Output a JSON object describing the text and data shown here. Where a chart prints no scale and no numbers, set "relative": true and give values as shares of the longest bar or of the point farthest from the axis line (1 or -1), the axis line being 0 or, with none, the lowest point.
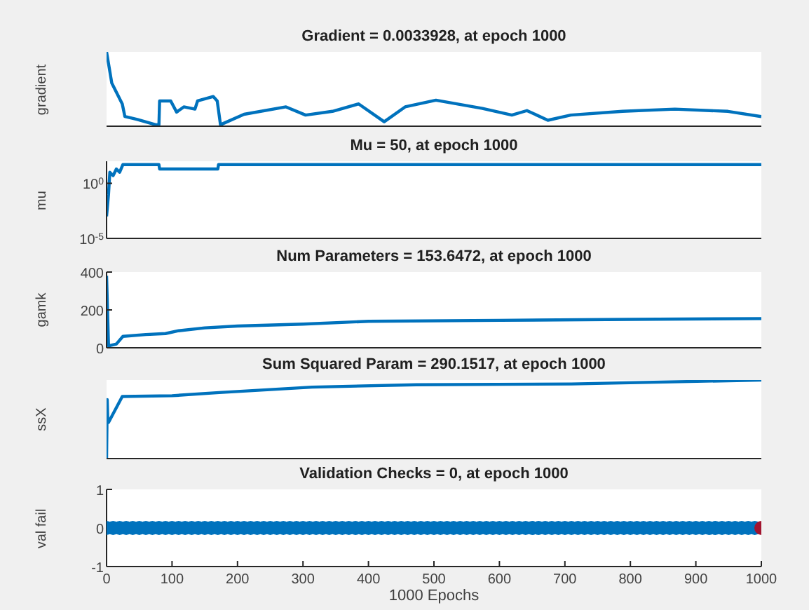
{
  "chart_data": [
    {
      "type": "line",
      "title": "Gradient = 0.0033928, at epoch 1000",
      "ylabel": "gradient",
      "relative": true,
      "tick_labels": false,
      "xlim": [
        0,
        1000
      ],
      "xticks": [
        0,
        100,
        200,
        300,
        400,
        500,
        600,
        700,
        800,
        900,
        1000
      ],
      "x": [
        0,
        8,
        24,
        28,
        47,
        75,
        80,
        81,
        98,
        107,
        118,
        135,
        139,
        163,
        169,
        174,
        210,
        274,
        304,
        345,
        385,
        424,
        456,
        503,
        574,
        619,
        642,
        674,
        709,
        788,
        868,
        949,
        1000
      ],
      "series": [
        {
          "color": "#0072bd",
          "values": [
            1,
            0.58,
            0.3,
            0.13,
            0.09,
            0.02,
            0.02,
            0.34,
            0.34,
            0.19,
            0.26,
            0.23,
            0.34,
            0.4,
            0.34,
            0.02,
            0.16,
            0.26,
            0.15,
            0.2,
            0.3,
            0.06,
            0.26,
            0.35,
            0.24,
            0.15,
            0.21,
            0.08,
            0.15,
            0.2,
            0.23,
            0.2,
            0.13
          ]
        }
      ]
    },
    {
      "type": "line",
      "title": "Mu = 50, at epoch 1000",
      "ylabel": "mu",
      "log": "y",
      "tick_labels": "y",
      "xlim": [
        0,
        1000
      ],
      "xticks": [
        0,
        100,
        200,
        300,
        400,
        500,
        600,
        700,
        800,
        900,
        1000
      ],
      "ylim": [
        1e-05,
        100
      ],
      "yticks": [
        {
          "value": 1e-05,
          "label": "10$^{-5}$"
        },
        {
          "value": 1,
          "label": "10$^{0}$"
        }
      ],
      "x": [
        0,
        3,
        5,
        10,
        15,
        20,
        25,
        80,
        81,
        170,
        171,
        1000
      ],
      "series": [
        {
          "color": "#0072bd",
          "values": [
            0.001,
            0.1,
            10,
            5,
            20,
            10,
            50,
            50,
            20,
            20,
            50,
            50
          ]
        }
      ]
    },
    {
      "type": "line",
      "title": "Num Parameters = 153.6472, at epoch 1000",
      "ylabel": "gamk",
      "tick_labels": "y",
      "xlim": [
        0,
        1000
      ],
      "xticks": [
        0,
        100,
        200,
        300,
        400,
        500,
        600,
        700,
        800,
        900,
        1000
      ],
      "ylim": [
        0,
        400
      ],
      "yticks": [
        0,
        200,
        400
      ],
      "x": [
        0,
        3,
        15,
        25,
        60,
        90,
        110,
        150,
        200,
        300,
        400,
        600,
        800,
        1000
      ],
      "series": [
        {
          "color": "#0072bd",
          "values": [
            380,
            10,
            20,
            60,
            70,
            75,
            90,
            105,
            115,
            125,
            140,
            145,
            150,
            154
          ]
        }
      ]
    },
    {
      "type": "line",
      "title": "Sum Squared Param = 290.1517, at epoch 1000",
      "ylabel": "ssX",
      "relative": true,
      "tick_labels": false,
      "xlim": [
        0,
        1000
      ],
      "xticks": [
        0,
        100,
        200,
        300,
        400,
        500,
        600,
        700,
        800,
        900,
        1000
      ],
      "x": [
        0,
        1,
        2,
        3,
        24,
        100,
        172,
        314,
        473,
        710,
        1000
      ],
      "series": [
        {
          "color": "#0072bd",
          "values": [
            0,
            0.75,
            0.46,
            0.46,
            0.79,
            0.8,
            0.84,
            0.91,
            0.94,
            0.95,
            1
          ]
        }
      ]
    },
    {
      "type": "scatter",
      "title": "Validation Checks = 0, at epoch 1000",
      "ylabel": "val fail",
      "xlabel": "1000 Epochs",
      "marker": "circle",
      "xlim": [
        0,
        1000
      ],
      "xticks": [
        0,
        100,
        200,
        300,
        400,
        500,
        600,
        700,
        800,
        900,
        1000
      ],
      "ylim": [
        -1,
        1
      ],
      "yticks": [
        -1,
        0,
        1
      ],
      "x": [
        0,
        10,
        20,
        30,
        40,
        50,
        60,
        70,
        80,
        90,
        100,
        110,
        120,
        130,
        140,
        150,
        160,
        170,
        180,
        190,
        200,
        210,
        220,
        230,
        240,
        250,
        260,
        270,
        280,
        290,
        300,
        310,
        320,
        330,
        340,
        350,
        360,
        370,
        380,
        390,
        400,
        410,
        420,
        430,
        440,
        450,
        460,
        470,
        480,
        490,
        500,
        510,
        520,
        530,
        540,
        550,
        560,
        570,
        580,
        590,
        600,
        610,
        620,
        630,
        640,
        650,
        660,
        670,
        680,
        690,
        700,
        710,
        720,
        730,
        740,
        750,
        760,
        770,
        780,
        790,
        800,
        810,
        820,
        830,
        840,
        850,
        860,
        870,
        880,
        890,
        900,
        910,
        920,
        930,
        940,
        950,
        960,
        970,
        980,
        990,
        1000
      ],
      "series": [
        {
          "color": "#0072bd",
          "values": [
            0,
            0,
            0,
            0,
            0,
            0,
            0,
            0,
            0,
            0,
            0,
            0,
            0,
            0,
            0,
            0,
            0,
            0,
            0,
            0,
            0,
            0,
            0,
            0,
            0,
            0,
            0,
            0,
            0,
            0,
            0,
            0,
            0,
            0,
            0,
            0,
            0,
            0,
            0,
            0,
            0,
            0,
            0,
            0,
            0,
            0,
            0,
            0,
            0,
            0,
            0,
            0,
            0,
            0,
            0,
            0,
            0,
            0,
            0,
            0,
            0,
            0,
            0,
            0,
            0,
            0,
            0,
            0,
            0,
            0,
            0,
            0,
            0,
            0,
            0,
            0,
            0,
            0,
            0,
            0,
            0,
            0,
            0,
            0,
            0,
            0,
            0,
            0,
            0,
            0,
            0,
            0,
            0,
            0,
            0,
            0,
            0,
            0,
            0,
            0,
            0
          ],
          "colors": [
            "#0072bd",
            "#0072bd",
            "#0072bd",
            "#0072bd",
            "#0072bd",
            "#0072bd",
            "#0072bd",
            "#0072bd",
            "#0072bd",
            "#0072bd",
            "#0072bd",
            "#0072bd",
            "#0072bd",
            "#0072bd",
            "#0072bd",
            "#0072bd",
            "#0072bd",
            "#0072bd",
            "#0072bd",
            "#0072bd",
            "#0072bd",
            "#0072bd",
            "#0072bd",
            "#0072bd",
            "#0072bd",
            "#0072bd",
            "#0072bd",
            "#0072bd",
            "#0072bd",
            "#0072bd",
            "#0072bd",
            "#0072bd",
            "#0072bd",
            "#0072bd",
            "#0072bd",
            "#0072bd",
            "#0072bd",
            "#0072bd",
            "#0072bd",
            "#0072bd",
            "#0072bd",
            "#0072bd",
            "#0072bd",
            "#0072bd",
            "#0072bd",
            "#0072bd",
            "#0072bd",
            "#0072bd",
            "#0072bd",
            "#0072bd",
            "#0072bd",
            "#0072bd",
            "#0072bd",
            "#0072bd",
            "#0072bd",
            "#0072bd",
            "#0072bd",
            "#0072bd",
            "#0072bd",
            "#0072bd",
            "#0072bd",
            "#0072bd",
            "#0072bd",
            "#0072bd",
            "#0072bd",
            "#0072bd",
            "#0072bd",
            "#0072bd",
            "#0072bd",
            "#0072bd",
            "#0072bd",
            "#0072bd",
            "#0072bd",
            "#0072bd",
            "#0072bd",
            "#0072bd",
            "#0072bd",
            "#0072bd",
            "#0072bd",
            "#0072bd",
            "#0072bd",
            "#0072bd",
            "#0072bd",
            "#0072bd",
            "#0072bd",
            "#0072bd",
            "#0072bd",
            "#0072bd",
            "#0072bd",
            "#0072bd",
            "#0072bd",
            "#0072bd",
            "#0072bd",
            "#0072bd",
            "#0072bd",
            "#0072bd",
            "#0072bd",
            "#0072bd",
            "#0072bd",
            "#0072bd",
            "#a2142f"
          ]
        }
      ]
    }
  ]
}
